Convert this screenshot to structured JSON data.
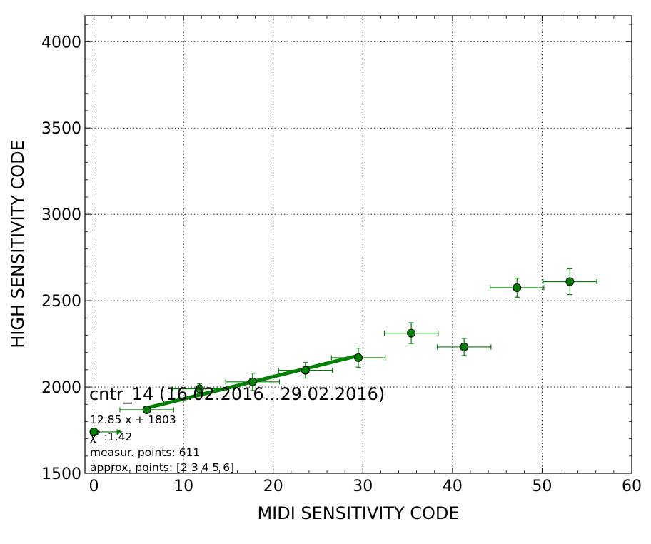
{
  "chart_data": {
    "type": "scatter",
    "xlabel": "MIDI SENSITIVITY CODE",
    "ylabel": "HIGH SENSITIVITY CODE",
    "xlim": [
      -1,
      60
    ],
    "ylim": [
      1500,
      4150
    ],
    "grid": true,
    "x_ticks": [
      0,
      10,
      20,
      30,
      40,
      50,
      60
    ],
    "y_ticks": [
      1500,
      2000,
      2500,
      3000,
      3500,
      4000
    ],
    "x_tick_labels": [
      "0",
      "10",
      "20",
      "30",
      "40",
      "50",
      "60"
    ],
    "y_tick_labels": [
      "1500",
      "2000",
      "2500",
      "3000",
      "3500",
      "4000"
    ],
    "points": [
      {
        "x": 0,
        "y": 1740,
        "xerr": 0,
        "yerr": 0
      },
      {
        "x": 5.9,
        "y": 1868,
        "xerr": 3,
        "yerr": 0
      },
      {
        "x": 11.8,
        "y": 1990,
        "xerr": 3,
        "yerr": 30
      },
      {
        "x": 17.7,
        "y": 2030,
        "xerr": 3,
        "yerr": 50
      },
      {
        "x": 23.6,
        "y": 2097,
        "xerr": 3,
        "yerr": 45
      },
      {
        "x": 29.5,
        "y": 2170,
        "xerr": 3,
        "yerr": 55
      },
      {
        "x": 35.4,
        "y": 2312,
        "xerr": 3,
        "yerr": 60
      },
      {
        "x": 41.3,
        "y": 2232,
        "xerr": 3,
        "yerr": 50
      },
      {
        "x": 47.2,
        "y": 2575,
        "xerr": 3,
        "yerr": 55
      },
      {
        "x": 53.1,
        "y": 2610,
        "xerr": 3,
        "yerr": 75
      }
    ],
    "fit_line": {
      "x": [
        5.9,
        29.5
      ],
      "slope": 12.85,
      "intercept": 1803
    },
    "annotation": {
      "title": "cntr_14 (16.02.2016...29.02.2016)",
      "equation": "12.85 x + 1803",
      "chi2_symbol": "χ",
      "chi2_value": " :1.42",
      "measur_points": "measur. points: 611",
      "approx_points": "approx. points: [2 3 4 5 6]"
    },
    "colors": {
      "marker_fill": "#008000",
      "marker_edge": "#000000",
      "errorbar": "#008000",
      "fit_line": "#008000",
      "grid": "#000000"
    }
  }
}
